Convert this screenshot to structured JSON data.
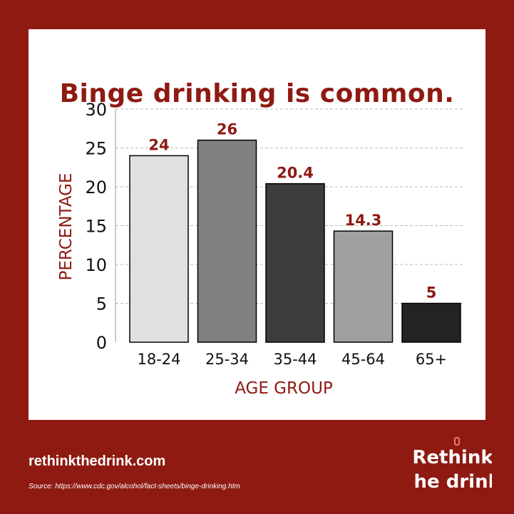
{
  "colors": {
    "brand": "#8e1a12",
    "background": "#ffffff",
    "bar_outline": "#000000",
    "grid": "#bbbbbb"
  },
  "chart_data": {
    "type": "bar",
    "title": "Binge drinking is common.",
    "xlabel": "AGE GROUP",
    "ylabel": "PERCENTAGE",
    "categories": [
      "18-24",
      "25-34",
      "35-44",
      "45-64",
      "65+"
    ],
    "values": [
      24,
      26,
      20.4,
      14.3,
      5
    ],
    "data_labels": [
      "24",
      "26",
      "20.4",
      "14.3",
      "5"
    ],
    "bar_colors": [
      "#e0e0e0",
      "#808080",
      "#3c3c3c",
      "#a0a0a0",
      "#232323"
    ],
    "ylim": [
      0,
      30
    ],
    "yticks": [
      0,
      5,
      10,
      15,
      20,
      25,
      30
    ],
    "grid": true,
    "grid_style": "dashed horizontal"
  },
  "footer": {
    "url": "rethinkthedrink.com",
    "source": "Source: https://www.cdc.gov/alcohol/fact-sheets/binge-drinking.htm"
  },
  "logo": {
    "line1": "Rethink",
    "line2": "the drink"
  }
}
